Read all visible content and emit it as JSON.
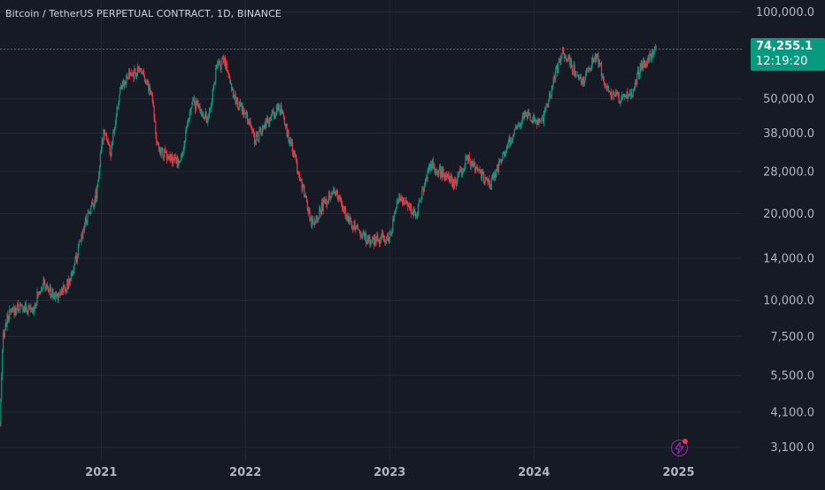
{
  "header": {
    "title": "Bitcoin / TetherUS PERPETUAL CONTRACT, 1D, BINANCE"
  },
  "last_price": {
    "value": "74,255.1",
    "countdown": "12:19:20"
  },
  "icons": {
    "flash": "lightning-flash-icon"
  },
  "colors": {
    "background": "#161a25",
    "grid": "#242835",
    "up": "#089981",
    "down": "#f23645",
    "axis_text": "#b2b5be",
    "price_line": "#089981"
  },
  "chart_data": {
    "type": "candlestick",
    "title": "Bitcoin / TetherUS PERPETUAL CONTRACT, 1D, BINANCE",
    "y_scale": "log",
    "ylim": [
      2800,
      110000
    ],
    "xlim": [
      "2020-04-20",
      "2025-06-10"
    ],
    "y_ticks": [
      {
        "value": 100000,
        "label": "100,000.0"
      },
      {
        "value": 50000,
        "label": "50,000.0"
      },
      {
        "value": 38000,
        "label": "38,000.0"
      },
      {
        "value": 28000,
        "label": "28,000.0"
      },
      {
        "value": 20000,
        "label": "20,000.0"
      },
      {
        "value": 14000,
        "label": "14,000.0"
      },
      {
        "value": 10000,
        "label": "10,000.0"
      },
      {
        "value": 7500,
        "label": "7,500.0"
      },
      {
        "value": 5500,
        "label": "5,500.0"
      },
      {
        "value": 4100,
        "label": "4,100.0"
      },
      {
        "value": 3100,
        "label": "3,100.0"
      }
    ],
    "x_ticks": [
      {
        "date": "2021-01-01",
        "label": "2021"
      },
      {
        "date": "2022-01-01",
        "label": "2022"
      },
      {
        "date": "2023-01-01",
        "label": "2023"
      },
      {
        "date": "2024-01-01",
        "label": "2024"
      },
      {
        "date": "2025-01-01",
        "label": "2025"
      }
    ],
    "last_price": 74255.1,
    "price_path": [
      [
        "2020-04-20",
        3700
      ],
      [
        "2020-04-28",
        7600
      ],
      [
        "2020-05-10",
        8800
      ],
      [
        "2020-06-05",
        9500
      ],
      [
        "2020-07-10",
        9200
      ],
      [
        "2020-08-05",
        11500
      ],
      [
        "2020-09-05",
        10300
      ],
      [
        "2020-10-10",
        11400
      ],
      [
        "2020-10-28",
        13600
      ],
      [
        "2020-11-20",
        18500
      ],
      [
        "2020-12-20",
        23500
      ],
      [
        "2021-01-08",
        40000
      ],
      [
        "2021-01-25",
        32000
      ],
      [
        "2021-02-20",
        56000
      ],
      [
        "2021-03-15",
        60000
      ],
      [
        "2021-04-14",
        63500
      ],
      [
        "2021-05-12",
        50000
      ],
      [
        "2021-05-22",
        34000
      ],
      [
        "2021-06-22",
        31000
      ],
      [
        "2021-07-20",
        30000
      ],
      [
        "2021-08-20",
        49000
      ],
      [
        "2021-09-07",
        46000
      ],
      [
        "2021-09-28",
        42000
      ],
      [
        "2021-10-20",
        64000
      ],
      [
        "2021-11-10",
        68000
      ],
      [
        "2021-12-05",
        50000
      ],
      [
        "2022-01-10",
        42000
      ],
      [
        "2022-01-25",
        36000
      ],
      [
        "2022-03-28",
        47000
      ],
      [
        "2022-05-10",
        30000
      ],
      [
        "2022-06-18",
        18500
      ],
      [
        "2022-08-12",
        24500
      ],
      [
        "2022-09-20",
        19000
      ],
      [
        "2022-11-09",
        16000
      ],
      [
        "2022-12-31",
        16500
      ],
      [
        "2023-01-25",
        23000
      ],
      [
        "2023-03-10",
        20000
      ],
      [
        "2023-04-14",
        30000
      ],
      [
        "2023-06-15",
        25000
      ],
      [
        "2023-07-14",
        31000
      ],
      [
        "2023-09-11",
        25000
      ],
      [
        "2023-10-24",
        34000
      ],
      [
        "2023-12-08",
        44000
      ],
      [
        "2024-01-20",
        41000
      ],
      [
        "2024-03-13",
        73000
      ],
      [
        "2024-05-01",
        57000
      ],
      [
        "2024-06-07",
        71000
      ],
      [
        "2024-07-05",
        54000
      ],
      [
        "2024-08-05",
        50000
      ],
      [
        "2024-09-06",
        53000
      ],
      [
        "2024-09-27",
        65000
      ],
      [
        "2024-10-31",
        71000
      ],
      [
        "2024-11-05",
        74255.1
      ]
    ]
  }
}
